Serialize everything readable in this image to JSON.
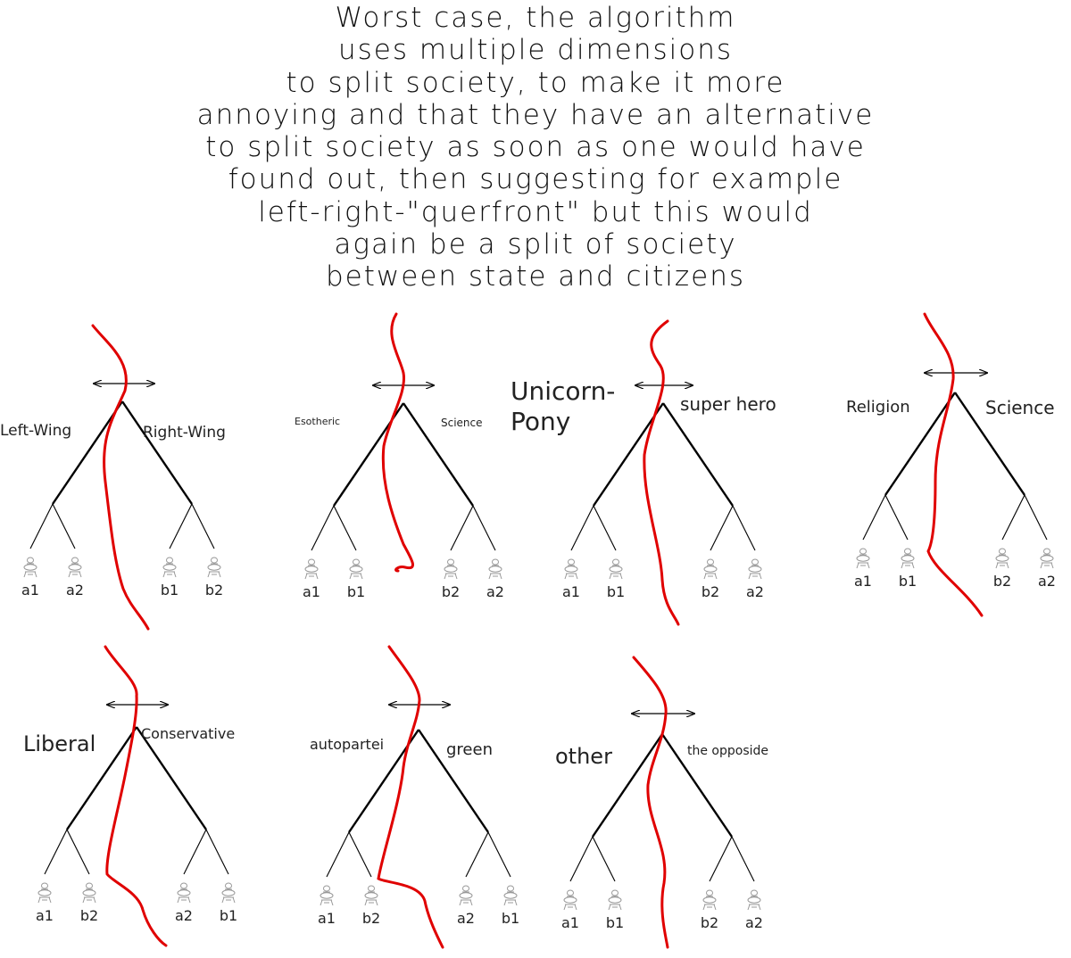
{
  "title_lines": [
    "Worst case, the algorithm",
    "uses multiple dimensions",
    "to split society, to make it more",
    "annoying and that they have an alternative",
    "to split society as soon as one would have",
    "found out, then suggesting for example",
    "left-right-\"querfront\" but this would",
    "again be a split of society",
    "between state and citizens"
  ],
  "colors": {
    "split_line": "#e00000",
    "tree_line": "#000000",
    "person_icon": "#999999"
  },
  "icons": {
    "person": "person-icon",
    "arrow": "double-arrow-icon"
  },
  "diagrams": [
    {
      "left_label": "Left-Wing",
      "right_label": "Right-Wing",
      "leaves": [
        "a1",
        "a2",
        "b1",
        "b2"
      ]
    },
    {
      "left_label": "Esotheric",
      "right_label": "Science",
      "leaves": [
        "a1",
        "b1",
        "b2",
        "a2"
      ]
    },
    {
      "left_label": "Unicorn-\nPony",
      "right_label": "super hero",
      "leaves": [
        "a1",
        "b1",
        "b2",
        "a2"
      ]
    },
    {
      "left_label": "Religion",
      "right_label": "Science",
      "leaves": [
        "a1",
        "b1",
        "b2",
        "a2"
      ]
    },
    {
      "left_label": "Liberal",
      "right_label": "Conservative",
      "leaves": [
        "a1",
        "b2",
        "a2",
        "b1"
      ]
    },
    {
      "left_label": "autopartei",
      "right_label": "green",
      "leaves": [
        "a1",
        "b2",
        "a2",
        "b1"
      ]
    },
    {
      "left_label": "other",
      "right_label": "the opposide",
      "leaves": [
        "a1",
        "b1",
        "b2",
        "a2"
      ]
    }
  ]
}
